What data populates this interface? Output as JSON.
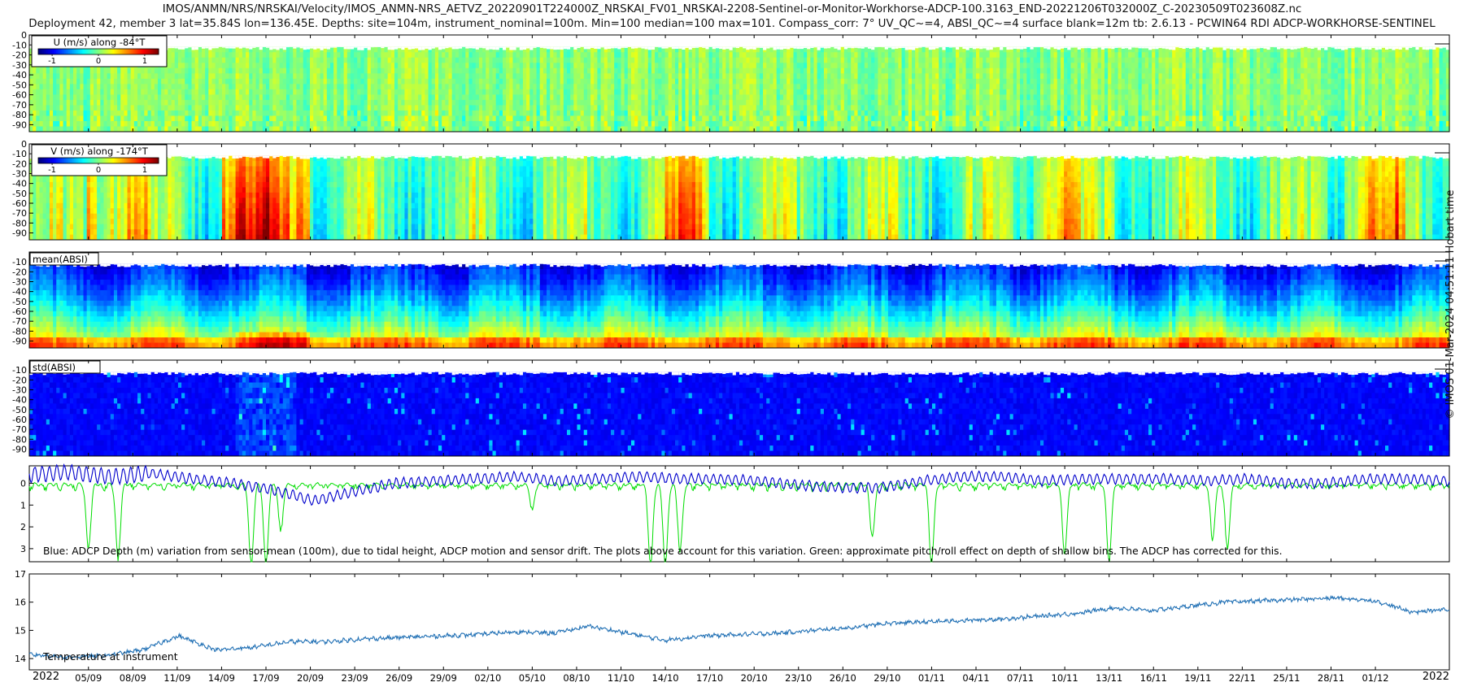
{
  "title_line1": "IMOS/ANMN/NRS/NRSKAI/Velocity/IMOS_ANMN-NRS_AETVZ_20220901T224000Z_NRSKAI_FV01_NRSKAI-2208-Sentinel-or-Monitor-Workhorse-ADCP-100.3163_END-20221206T032000Z_C-20230509T023608Z.nc",
  "title_line2": "Deployment 42, member 3 lat=35.84S lon=136.45E. Depths: site=104m, instrument_nominal=100m. Min=100 median=100 max=101. Compass_corr: 7° UV_QC~=4, ABSI_QC~=4 surface blank=12m tb: 2.6.13 - PCWIN64 RDI ADCP-WORKHORSE-SENTINEL",
  "side_label": "© IMOS 01-Mar-2024 04:51:11 Hobart time",
  "chart_data": [
    {
      "type": "heatmap",
      "panel": "u-velocity",
      "label": "U (m/s) along -84°T",
      "colorbar_ticks": [
        "-1",
        "0",
        "1"
      ],
      "clim": [
        -1.3,
        1.3
      ],
      "y_ticks": [
        "0",
        "-10",
        "-20",
        "-30",
        "-40",
        "-50",
        "-60",
        "-70",
        "-80",
        "-90"
      ],
      "surface_blank_m": 12,
      "typical_value": 0.0
    },
    {
      "type": "heatmap",
      "panel": "v-velocity",
      "label": "V (m/s) along -174°T",
      "colorbar_ticks": [
        "-1",
        "0",
        "1"
      ],
      "clim": [
        -1.3,
        1.3
      ],
      "y_ticks": [
        "0",
        "-10",
        "-20",
        "-30",
        "-40",
        "-50",
        "-60",
        "-70",
        "-80",
        "-90"
      ],
      "surface_blank_m": 12,
      "strong_events": [
        {
          "start": "2022-09-05",
          "end": "2022-09-09",
          "value": 0.55
        },
        {
          "start": "2022-09-14",
          "end": "2022-09-20",
          "value": 0.95
        },
        {
          "start": "2022-10-14",
          "end": "2022-10-17",
          "value": 0.6
        },
        {
          "start": "2022-11-08",
          "end": "2022-11-11",
          "value": 0.5
        },
        {
          "start": "2022-11-29",
          "end": "2022-12-03",
          "value": 0.6
        }
      ]
    },
    {
      "type": "heatmap",
      "panel": "mean-absi",
      "label": "mean(ABSI)",
      "y_ticks": [
        "-10",
        "-20",
        "-30",
        "-40",
        "-50",
        "-60",
        "-70",
        "-80",
        "-90"
      ],
      "surface_blank_m": 12
    },
    {
      "type": "heatmap",
      "panel": "std-absi",
      "label": "std(ABSI)",
      "y_ticks": [
        "-10",
        "-20",
        "-30",
        "-40",
        "-50",
        "-60",
        "-70",
        "-80",
        "-90"
      ],
      "surface_blank_m": 12
    },
    {
      "type": "line",
      "panel": "depth-variation",
      "annotation": "Blue: ADCP Depth (m) variation from sensor-mean (100m), due to tidal height, ADCP motion and sensor drift. The plots above account for this variation. Green: approximate pitch/roll effect on depth of shallow bins. The ADCP has corrected for this.",
      "y_ticks": [
        "0",
        "1",
        "2",
        "3"
      ],
      "ylim": [
        -0.8,
        3.6
      ],
      "y_reversed": true,
      "series": [
        {
          "color": "#0000cc",
          "values": [
            -0.4,
            -0.5,
            -0.3,
            -0.45,
            -0.2,
            0.0,
            0.3,
            0.8,
            0.4,
            0.0,
            -0.1,
            -0.2,
            -0.3,
            -0.1,
            -0.2,
            -0.3,
            -0.2,
            -0.2,
            -0.1,
            0.1,
            0.2,
            0.2,
            -0.1,
            -0.3,
            -0.3,
            -0.1,
            -0.2,
            -0.2,
            -0.2,
            -0.1,
            -0.2,
            0.0,
            0.0,
            -0.2,
            -0.2,
            -0.1
          ]
        },
        {
          "color": "#00dd00",
          "events": [
            {
              "date": "2022-09-05",
              "value": 2.8
            },
            {
              "date": "2022-09-07",
              "value": 3.3
            },
            {
              "date": "2022-09-16",
              "value": 3.6
            },
            {
              "date": "2022-09-17",
              "value": 3.6
            },
            {
              "date": "2022-09-18",
              "value": 2.0
            },
            {
              "date": "2022-10-05",
              "value": 1.0
            },
            {
              "date": "2022-10-13",
              "value": 3.6
            },
            {
              "date": "2022-10-14",
              "value": 3.6
            },
            {
              "date": "2022-10-15",
              "value": 2.9
            },
            {
              "date": "2022-10-28",
              "value": 2.3
            },
            {
              "date": "2022-11-01",
              "value": 3.5
            },
            {
              "date": "2022-11-10",
              "value": 3.0
            },
            {
              "date": "2022-11-13",
              "value": 3.4
            },
            {
              "date": "2022-11-20",
              "value": 2.4
            },
            {
              "date": "2022-11-21",
              "value": 2.8
            }
          ]
        }
      ]
    },
    {
      "type": "line",
      "panel": "temperature",
      "annotation": "Temperature at instrument",
      "y_ticks": [
        "14",
        "15",
        "16",
        "17"
      ],
      "ylim": [
        13.6,
        17.0
      ],
      "series": [
        {
          "color": "#1f6fb4",
          "values": [
            14.15,
            14.05,
            14.1,
            14.3,
            14.8,
            14.3,
            14.4,
            14.6,
            14.6,
            14.7,
            14.75,
            14.8,
            14.85,
            14.95,
            14.9,
            15.15,
            14.9,
            14.65,
            14.8,
            14.85,
            14.9,
            15.0,
            15.1,
            15.25,
            15.3,
            15.35,
            15.4,
            15.5,
            15.6,
            15.8,
            15.7,
            15.85,
            16.0,
            16.05,
            16.1,
            16.15,
            16.05,
            15.65,
            15.75
          ]
        }
      ]
    }
  ],
  "x_axis": {
    "start": "2022-09-01",
    "end": "2022-12-06",
    "tick_labels": [
      "05/09",
      "08/09",
      "11/09",
      "14/09",
      "17/09",
      "20/09",
      "23/09",
      "26/09",
      "29/09",
      "02/10",
      "05/10",
      "08/10",
      "11/10",
      "14/10",
      "17/10",
      "20/10",
      "23/10",
      "26/10",
      "29/10",
      "01/11",
      "04/11",
      "07/11",
      "10/11",
      "13/11",
      "16/11",
      "19/11",
      "22/11",
      "25/11",
      "28/11",
      "01/12"
    ],
    "year_left": "2022",
    "year_right": "2022"
  }
}
